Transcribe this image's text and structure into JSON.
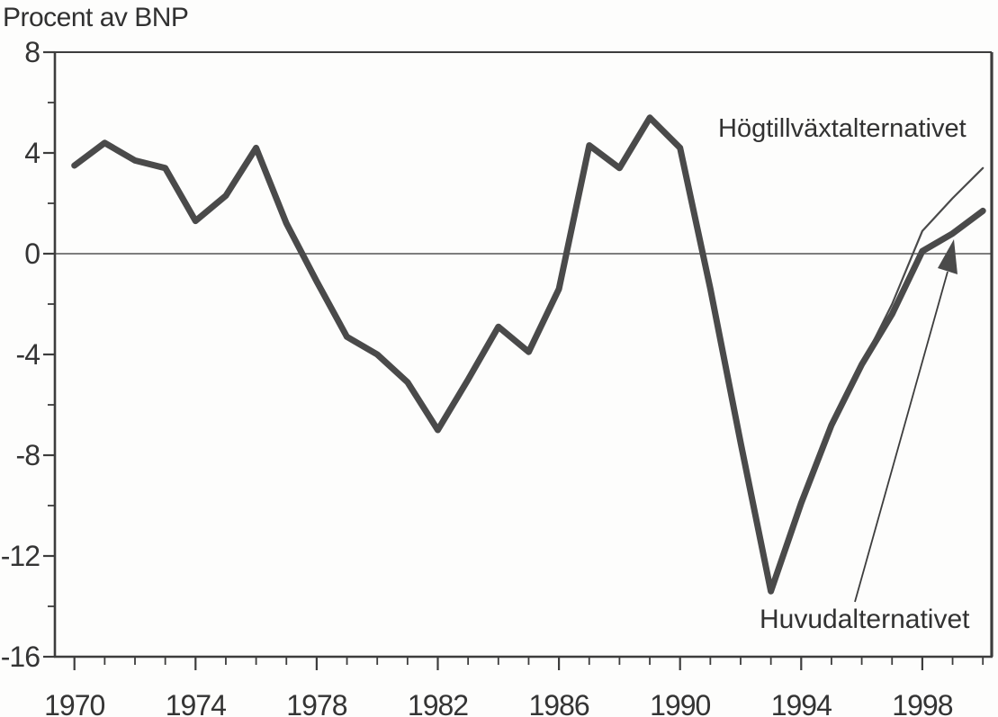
{
  "chart_data": {
    "type": "line",
    "title": "Procent av BNP",
    "x": [
      1970,
      1971,
      1972,
      1973,
      1974,
      1975,
      1976,
      1977,
      1978,
      1979,
      1980,
      1981,
      1982,
      1983,
      1984,
      1985,
      1986,
      1987,
      1988,
      1989,
      1990,
      1991,
      1992,
      1993,
      1994,
      1995,
      1996,
      1997,
      1998,
      1999,
      2000
    ],
    "series": [
      {
        "name": "Huvudalternativet",
        "style": "thick",
        "x_start": 1970,
        "values": [
          3.5,
          4.4,
          3.7,
          3.4,
          1.3,
          2.3,
          4.2,
          1.2,
          -1.1,
          -3.3,
          -4.0,
          -5.1,
          -7.0,
          -5.0,
          -2.9,
          -3.9,
          -1.4,
          4.3,
          3.4,
          5.4,
          4.2,
          -1.4,
          -7.5,
          -13.4,
          -9.9,
          -6.8,
          -4.4,
          -2.4,
          0.1,
          0.8,
          1.7
        ]
      },
      {
        "name": "Högtillväxtalternativet",
        "style": "thin",
        "x_start": 1996,
        "values": [
          -4.4,
          -2.0,
          0.9,
          2.2,
          3.4
        ]
      }
    ],
    "axes": {
      "ylim": [
        -16,
        8
      ],
      "xlim": [
        1969.35,
        2000.35
      ],
      "y_major_ticks": [
        8,
        4,
        0,
        -4,
        -8,
        -12,
        -16
      ],
      "y_minor_ticks": [
        6,
        2,
        -2,
        -6,
        -10,
        -14
      ],
      "x_major_ticks": [
        1970,
        1974,
        1978,
        1982,
        1986,
        1990,
        1994,
        1998
      ],
      "x_minor_step": 1,
      "zero_line": true,
      "grid": false
    },
    "annotation": {
      "text": "Huvudalternativet",
      "arrow_points_to_series": "Huvudalternativet"
    },
    "colors": {
      "line": "#4a4a4a",
      "axis": "#3d3d3d",
      "text": "#333333",
      "background": "#fdfdfc"
    }
  }
}
